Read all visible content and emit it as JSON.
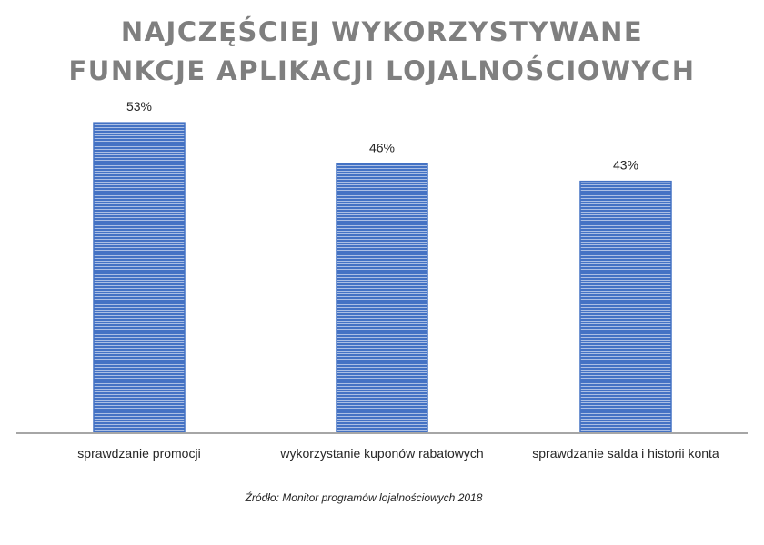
{
  "chart_data": {
    "type": "bar",
    "title": [
      "NAJCZĘŚCIEJ WYKORZYSTYWANE",
      "FUNKCJE APLIKACJI LOJALNOŚCIOWYCH"
    ],
    "categories": [
      "sprawdzanie promocji",
      "wykorzystanie kuponów rabatowych",
      "sprawdzanie salda i historii konta"
    ],
    "values": [
      53,
      46,
      43
    ],
    "value_labels": [
      "53%",
      "46%",
      "43%"
    ],
    "ylim": [
      0,
      60
    ],
    "grid": false,
    "legend": "none"
  },
  "source_text": "Źródło: Monitor programów lojalnościowych 2018",
  "colors": {
    "title": "#7f7f7f",
    "bar_fill": "#4472c4",
    "bar_stripe": "#ffffff",
    "axis": "#a6a6a6",
    "text": "#262626"
  }
}
